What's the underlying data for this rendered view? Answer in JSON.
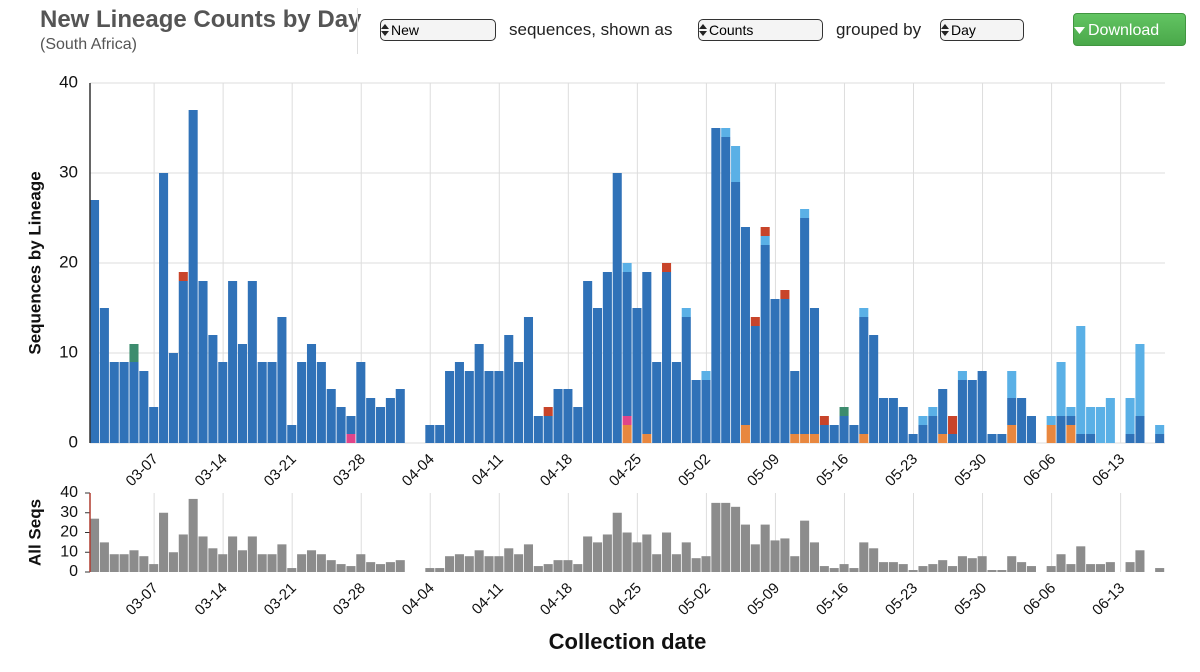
{
  "header": {
    "title": "New Lineage Counts by Day",
    "subtitle": "(South Africa)"
  },
  "controls": {
    "lineage_select": "New",
    "text_shown_as": "sequences, shown as",
    "mode_select": "Counts",
    "text_grouped_by": "grouped by",
    "group_select": "Day",
    "download": "Download"
  },
  "chart_data": [
    {
      "type": "bar",
      "stacked": true,
      "ylabel": "Sequences by Lineage",
      "ylim": [
        0,
        40
      ],
      "yticks": [
        0,
        10,
        20,
        30,
        40
      ],
      "grid": "both",
      "categories": [
        null,
        null,
        null,
        null,
        null,
        null,
        "03-07",
        null,
        null,
        null,
        null,
        null,
        null,
        "03-14",
        null,
        null,
        null,
        null,
        null,
        null,
        "03-21",
        null,
        null,
        null,
        null,
        null,
        null,
        "03-28",
        null,
        null,
        null,
        null,
        null,
        null,
        "04-04",
        null,
        null,
        null,
        null,
        null,
        null,
        "04-11",
        null,
        null,
        null,
        null,
        null,
        null,
        "04-18",
        null,
        null,
        null,
        null,
        null,
        null,
        "04-25",
        null,
        null,
        null,
        null,
        null,
        null,
        "05-02",
        null,
        null,
        null,
        null,
        null,
        null,
        "05-09",
        null,
        null,
        null,
        null,
        null,
        null,
        "05-16",
        null,
        null,
        null,
        null,
        null,
        null,
        "05-23",
        null,
        null,
        null,
        null,
        null,
        null,
        "05-30",
        null,
        null,
        null,
        null,
        null,
        null,
        "06-06",
        null,
        null,
        null,
        null,
        null,
        null,
        "06-13",
        null,
        null,
        null,
        null
      ],
      "series": [
        {
          "color": "#e8873f",
          "values": [
            0,
            0,
            0,
            0,
            0,
            0,
            0,
            0,
            0,
            0,
            0,
            0,
            0,
            0,
            0,
            0,
            0,
            0,
            0,
            0,
            0,
            0,
            0,
            0,
            0,
            0,
            0,
            0,
            0,
            0,
            0,
            0,
            0,
            0,
            0,
            0,
            0,
            0,
            0,
            0,
            0,
            0,
            0,
            0,
            0,
            0,
            0,
            0,
            0,
            0,
            0,
            0,
            0,
            0,
            2,
            0,
            1,
            0,
            0,
            0,
            0,
            0,
            0,
            0,
            0,
            0,
            2,
            0,
            0,
            0,
            0,
            1,
            1,
            1,
            0,
            0,
            0,
            0,
            1,
            0,
            0,
            0,
            0,
            0,
            0,
            0,
            1,
            0,
            0,
            0,
            0,
            0,
            0,
            2,
            0,
            0,
            0,
            2,
            0,
            2,
            0,
            0,
            0,
            0,
            0,
            0,
            0,
            0,
            0
          ]
        },
        {
          "color": "#e0458a",
          "values": [
            0,
            0,
            0,
            0,
            0,
            0,
            0,
            0,
            0,
            0,
            0,
            0,
            0,
            0,
            0,
            0,
            0,
            0,
            0,
            0,
            0,
            0,
            0,
            0,
            0,
            0,
            1,
            0,
            0,
            0,
            0,
            0,
            0,
            0,
            0,
            0,
            0,
            0,
            0,
            0,
            0,
            0,
            0,
            0,
            0,
            0,
            0,
            0,
            0,
            0,
            0,
            0,
            0,
            0,
            1,
            0,
            0,
            0,
            0,
            0,
            0,
            0,
            0,
            0,
            0,
            0,
            0,
            0,
            0,
            0,
            0,
            0,
            0,
            0,
            0,
            0,
            0,
            0,
            0,
            0,
            0,
            0,
            0,
            0,
            0,
            0,
            0,
            0,
            0,
            0,
            0,
            0,
            0,
            0,
            0,
            0,
            0,
            0,
            0,
            0,
            0,
            0,
            0,
            0,
            0,
            0,
            0,
            0,
            0
          ]
        },
        {
          "color": "#3072b8",
          "values": [
            27,
            15,
            9,
            9,
            9,
            8,
            4,
            30,
            10,
            18,
            37,
            18,
            12,
            9,
            18,
            11,
            18,
            9,
            9,
            14,
            2,
            9,
            11,
            9,
            6,
            4,
            2,
            9,
            5,
            4,
            5,
            6,
            0,
            0,
            2,
            2,
            8,
            9,
            8,
            11,
            8,
            8,
            12,
            9,
            14,
            3,
            3,
            6,
            6,
            4,
            18,
            15,
            19,
            30,
            16,
            15,
            18,
            9,
            19,
            9,
            14,
            7,
            7,
            35,
            34,
            29,
            22,
            13,
            22,
            16,
            16,
            7,
            24,
            14,
            2,
            2,
            3,
            2,
            13,
            12,
            5,
            5,
            4,
            1,
            2,
            3,
            5,
            1,
            7,
            7,
            8,
            1,
            1,
            3,
            5,
            3,
            0,
            0,
            3,
            1,
            1,
            1,
            0,
            0,
            0,
            1,
            3,
            0,
            1
          ]
        },
        {
          "color": "#5ab0e6",
          "values": [
            0,
            0,
            0,
            0,
            0,
            0,
            0,
            0,
            0,
            0,
            0,
            0,
            0,
            0,
            0,
            0,
            0,
            0,
            0,
            0,
            0,
            0,
            0,
            0,
            0,
            0,
            0,
            0,
            0,
            0,
            0,
            0,
            0,
            0,
            0,
            0,
            0,
            0,
            0,
            0,
            0,
            0,
            0,
            0,
            0,
            0,
            0,
            0,
            0,
            0,
            0,
            0,
            0,
            0,
            1,
            0,
            0,
            0,
            0,
            0,
            1,
            0,
            1,
            0,
            1,
            4,
            0,
            0,
            1,
            0,
            0,
            0,
            1,
            0,
            0,
            0,
            0,
            0,
            1,
            0,
            0,
            0,
            0,
            0,
            1,
            1,
            0,
            0,
            1,
            0,
            0,
            0,
            0,
            3,
            0,
            0,
            0,
            1,
            6,
            1,
            12,
            3,
            4,
            5,
            0,
            4,
            8,
            0,
            1
          ]
        },
        {
          "color": "#c8442a",
          "values": [
            0,
            0,
            0,
            0,
            0,
            0,
            0,
            0,
            0,
            1,
            0,
            0,
            0,
            0,
            0,
            0,
            0,
            0,
            0,
            0,
            0,
            0,
            0,
            0,
            0,
            0,
            0,
            0,
            0,
            0,
            0,
            0,
            0,
            0,
            0,
            0,
            0,
            0,
            0,
            0,
            0,
            0,
            0,
            0,
            0,
            0,
            1,
            0,
            0,
            0,
            0,
            0,
            0,
            0,
            0,
            0,
            0,
            0,
            1,
            0,
            0,
            0,
            0,
            0,
            0,
            0,
            0,
            1,
            1,
            0,
            1,
            0,
            0,
            0,
            1,
            0,
            0,
            0,
            0,
            0,
            0,
            0,
            0,
            0,
            0,
            0,
            0,
            2,
            0,
            0,
            0,
            0,
            0,
            0,
            0,
            0,
            0,
            0,
            0,
            0,
            0,
            0,
            0,
            0,
            0,
            0,
            0,
            0,
            0
          ]
        },
        {
          "color": "#3d8c6e",
          "values": [
            0,
            0,
            0,
            0,
            2,
            0,
            0,
            0,
            0,
            0,
            0,
            0,
            0,
            0,
            0,
            0,
            0,
            0,
            0,
            0,
            0,
            0,
            0,
            0,
            0,
            0,
            0,
            0,
            0,
            0,
            0,
            0,
            0,
            0,
            0,
            0,
            0,
            0,
            0,
            0,
            0,
            0,
            0,
            0,
            0,
            0,
            0,
            0,
            0,
            0,
            0,
            0,
            0,
            0,
            0,
            0,
            0,
            0,
            0,
            0,
            0,
            0,
            0,
            0,
            0,
            0,
            0,
            0,
            0,
            0,
            0,
            0,
            0,
            0,
            0,
            0,
            1,
            0,
            0,
            0,
            0,
            0,
            0,
            0,
            0,
            0,
            0,
            0,
            0,
            0,
            0,
            0,
            0,
            0,
            0,
            0,
            0,
            0,
            0,
            0,
            0,
            0,
            0,
            0,
            0,
            0,
            0,
            0,
            0
          ]
        }
      ]
    },
    {
      "type": "bar",
      "ylabel": "All Seqs",
      "xlabel": "Collection date",
      "ylim": [
        0,
        40
      ],
      "yticks": [
        0,
        10,
        20,
        30,
        40
      ],
      "grid": "x",
      "color": "#8c8c8c",
      "categories": [
        null,
        null,
        null,
        null,
        null,
        null,
        "03-07",
        null,
        null,
        null,
        null,
        null,
        null,
        "03-14",
        null,
        null,
        null,
        null,
        null,
        null,
        "03-21",
        null,
        null,
        null,
        null,
        null,
        null,
        "03-28",
        null,
        null,
        null,
        null,
        null,
        null,
        "04-04",
        null,
        null,
        null,
        null,
        null,
        null,
        "04-11",
        null,
        null,
        null,
        null,
        null,
        null,
        "04-18",
        null,
        null,
        null,
        null,
        null,
        null,
        "04-25",
        null,
        null,
        null,
        null,
        null,
        null,
        "05-02",
        null,
        null,
        null,
        null,
        null,
        null,
        "05-09",
        null,
        null,
        null,
        null,
        null,
        null,
        "05-16",
        null,
        null,
        null,
        null,
        null,
        null,
        "05-23",
        null,
        null,
        null,
        null,
        null,
        null,
        "05-30",
        null,
        null,
        null,
        null,
        null,
        null,
        "06-06",
        null,
        null,
        null,
        null,
        null,
        null,
        "06-13",
        null,
        null,
        null,
        null
      ],
      "values": [
        27,
        15,
        9,
        9,
        11,
        8,
        4,
        30,
        10,
        19,
        37,
        18,
        12,
        9,
        18,
        11,
        18,
        9,
        9,
        14,
        2,
        9,
        11,
        9,
        6,
        4,
        3,
        9,
        5,
        4,
        5,
        6,
        0,
        0,
        2,
        2,
        8,
        9,
        8,
        11,
        8,
        8,
        12,
        9,
        14,
        3,
        4,
        6,
        6,
        4,
        18,
        15,
        19,
        30,
        20,
        15,
        19,
        9,
        20,
        9,
        15,
        7,
        8,
        35,
        35,
        33,
        24,
        14,
        24,
        16,
        17,
        8,
        26,
        15,
        3,
        2,
        4,
        2,
        15,
        12,
        5,
        5,
        4,
        1,
        3,
        4,
        6,
        3,
        8,
        7,
        8,
        1,
        1,
        8,
        5,
        3,
        0,
        3,
        9,
        4,
        13,
        4,
        4,
        5,
        0,
        5,
        11,
        0,
        2
      ]
    }
  ]
}
